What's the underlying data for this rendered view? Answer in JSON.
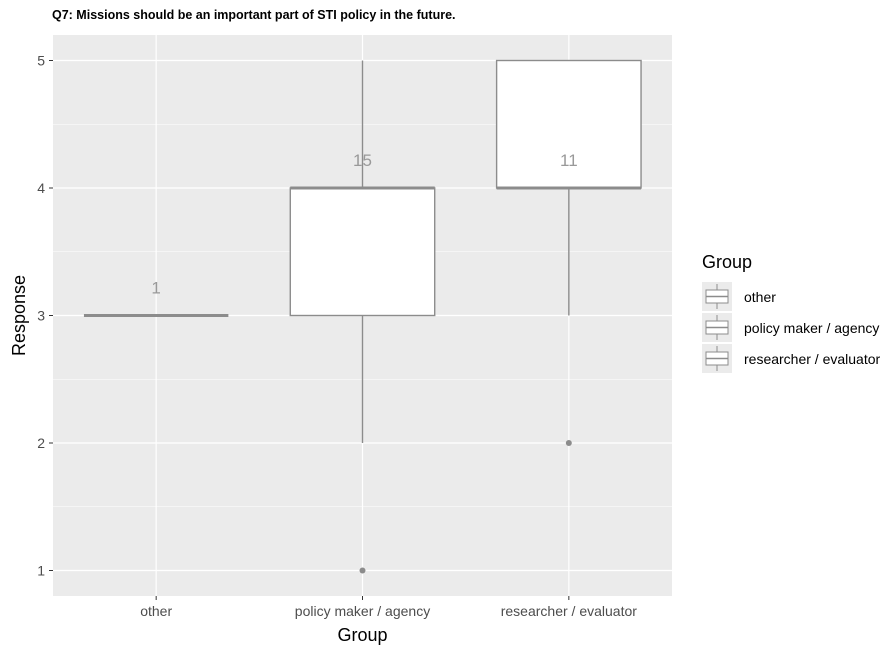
{
  "title": "Q7: Missions should be an important part of STI policy in the future.",
  "legend": {
    "title": "Group",
    "items": [
      "other",
      "policy maker / agency",
      "researcher / evaluator"
    ]
  },
  "chart_data": {
    "type": "boxplot",
    "title": "Q7: Missions should be an important part of STI policy in the future.",
    "xlabel": "Group",
    "ylabel": "Response",
    "categories": [
      "other",
      "policy maker / agency",
      "researcher / evaluator"
    ],
    "ylim": [
      0.8,
      5.2
    ],
    "yticks": [
      1,
      2,
      3,
      4,
      5
    ],
    "boxes": [
      {
        "category": "other",
        "min": 3,
        "q1": 3,
        "median": 3,
        "q3": 3,
        "max": 3,
        "outliers": [],
        "n_label": "1"
      },
      {
        "category": "policy maker / agency",
        "min": 2,
        "q1": 3,
        "median": 4,
        "q3": 4,
        "max": 5,
        "outliers": [
          1
        ],
        "n_label": "15"
      },
      {
        "category": "researcher / evaluator",
        "min": 3,
        "q1": 4,
        "median": 4,
        "q3": 5,
        "max": 5,
        "outliers": [
          2
        ],
        "n_label": "11"
      }
    ],
    "grid": true,
    "legend_position": "right",
    "colors": {
      "panel": "#ebebeb",
      "grid": "#ffffff",
      "box_line": "#8c8c8c",
      "box_fill": "#ffffff",
      "label": "#999999"
    }
  }
}
